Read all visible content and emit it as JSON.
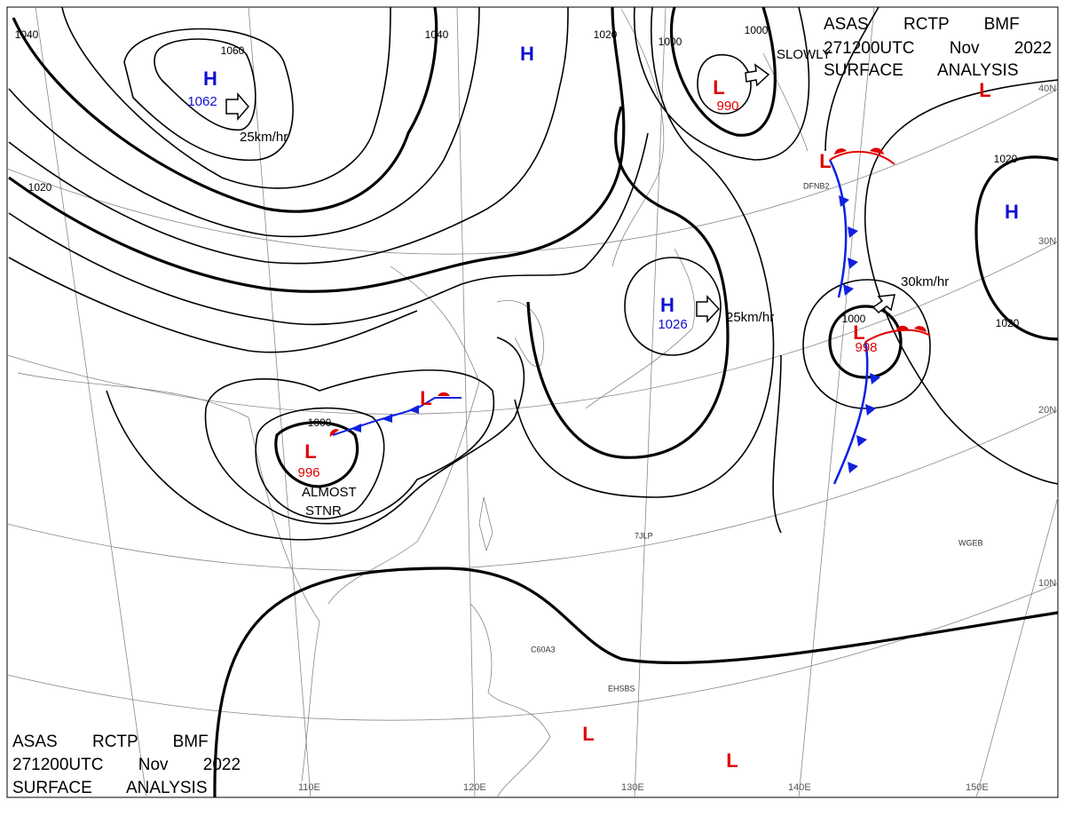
{
  "header_top": [
    "ASAS RCTP BMF",
    "271200UTC Nov 2022",
    "SURFACE ANALYSIS"
  ],
  "header_bottom": [
    "ASAS RCTP BMF",
    "271200UTC Nov 2022",
    "SURFACE ANALYSIS"
  ],
  "centers": [
    {
      "symbol": "H",
      "pressure": 1062
    },
    {
      "symbol": "H"
    },
    {
      "symbol": "L",
      "pressure": 990
    },
    {
      "symbol": "L"
    },
    {
      "symbol": "H",
      "pressure": 1026
    },
    {
      "symbol": "L",
      "pressure": 996
    },
    {
      "symbol": "L",
      "pressure": 998
    },
    {
      "symbol": "L"
    },
    {
      "symbol": "L"
    },
    {
      "symbol": "L"
    },
    {
      "symbol": "L"
    },
    {
      "symbol": "H"
    }
  ],
  "isobar_labels": [
    1040,
    1060,
    1040,
    1020,
    1000,
    1000,
    1020,
    1020,
    1020,
    1000,
    1000
  ],
  "annotations": [
    "25km/hr",
    "SLOWLY",
    "25km/hr",
    "30km/hr",
    "ALMOST",
    "STNR"
  ],
  "latitudes": [
    "40N",
    "30N",
    "20N",
    "10N"
  ],
  "longitudes": [
    "110E",
    "120E",
    "130E",
    "140E",
    "150E"
  ],
  "ship_ids": [
    "DFNB2",
    "7JLP",
    "WGEB",
    "C60A3",
    "EHSBS"
  ]
}
